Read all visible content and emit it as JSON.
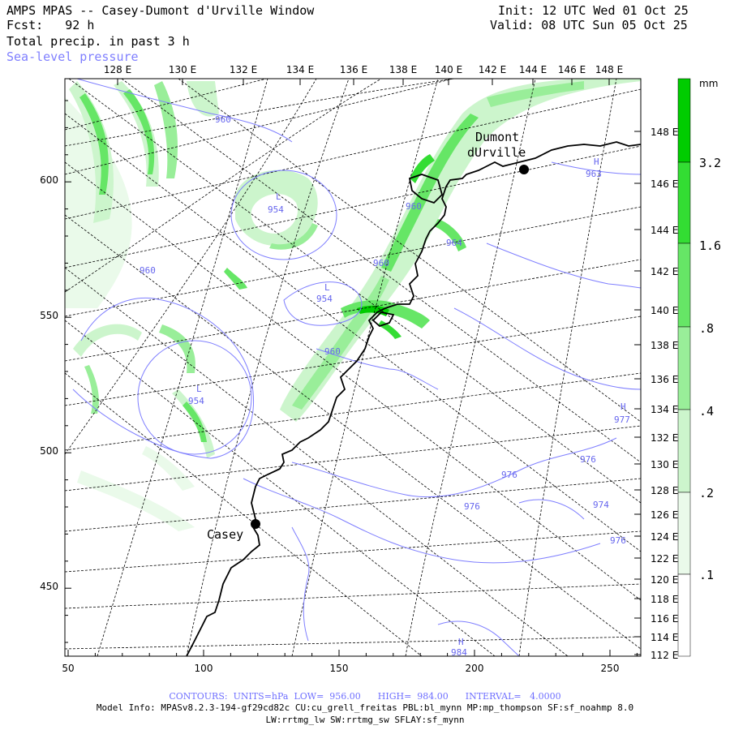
{
  "header": {
    "title": "AMPS MPAS -- Casey-Dumont d'Urville Window",
    "fcst": "Fcst:   92 h",
    "field": "Total precip. in past 3 h",
    "overlay": "Sea-level pressure",
    "init": "Init: 12 UTC Wed 01 Oct 25",
    "valid": "Valid: 08 UTC Sun 05 Oct 25"
  },
  "top_axis": {
    "labels": [
      "128 E",
      "130 E",
      "132 E",
      "134 E",
      "136 E",
      "138 E",
      "140 E",
      "142 E",
      "144 E",
      "146 E",
      "148 E"
    ]
  },
  "right_axis": {
    "labels": [
      "148 E",
      "146 E",
      "144 E",
      "142 E",
      "140 E",
      "138 E",
      "136 E",
      "134 E",
      "132 E",
      "130 E",
      "128 E",
      "126 E",
      "124 E",
      "122 E",
      "120 E",
      "118 E",
      "116 E",
      "114 E",
      "112 E"
    ]
  },
  "left_axis": {
    "labels": [
      "600",
      "550",
      "500",
      "450"
    ]
  },
  "bottom_axis": {
    "labels": [
      "50",
      "100",
      "150",
      "200",
      "250"
    ]
  },
  "colorbar": {
    "unit": "mm",
    "labels": [
      "3.2",
      "1.6",
      ".8",
      ".4",
      ".2",
      ".1"
    ],
    "colors": [
      "#00cc00",
      "#33dd33",
      "#66e666",
      "#99ee99",
      "#ccf5cc",
      "#eafaea"
    ]
  },
  "stations": [
    {
      "name": "Dumont",
      "name2": "dUrville"
    },
    {
      "name": "Casey"
    }
  ],
  "pressure_labels": {
    "L": "L",
    "H": "H",
    "values": [
      "960",
      "954",
      "954",
      "954",
      "960",
      "960",
      "960",
      "964",
      "960",
      "963",
      "977",
      "976",
      "976",
      "976",
      "974",
      "976",
      "984"
    ]
  },
  "colors": {
    "contour": "#7f7fff",
    "coast": "#000000",
    "grid": "#000000"
  },
  "footer": {
    "contours": "CONTOURS:  UNITS=hPa  LOW=  956.00      HIGH=  984.00      INTERVAL=   4.0000",
    "model_info": "Model Info: MPASv8.2.3-194-gf29cd82c CU:cu_grell_freitas PBL:bl_mynn MP:mp_thompson SF:sf_noahmp 8.0",
    "model_info2": "LW:rrtmg_lw SW:rrtmg_sw SFLAY:sf_mynn"
  }
}
